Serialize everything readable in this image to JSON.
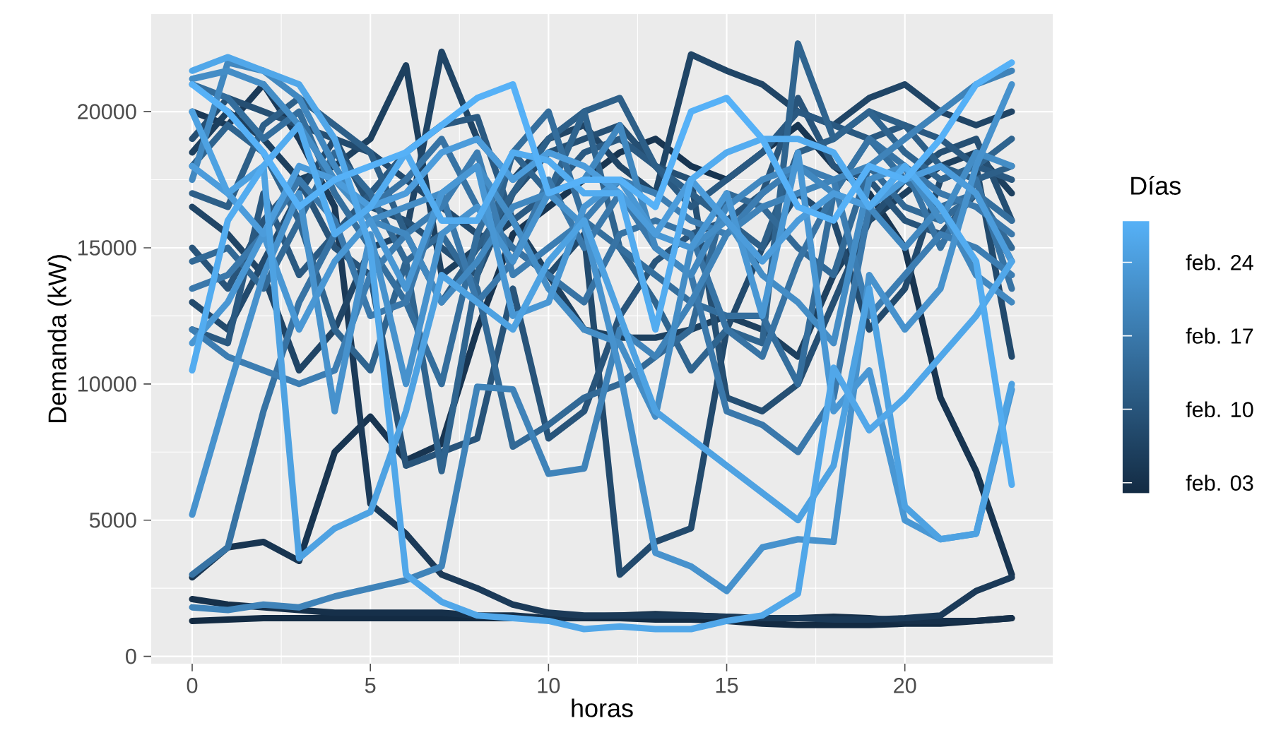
{
  "chart_data": {
    "type": "line",
    "xlabel": "horas",
    "ylabel": "Demanda (kW)",
    "clabel": "Días",
    "x": [
      0,
      1,
      2,
      3,
      4,
      5,
      6,
      7,
      8,
      9,
      10,
      11,
      12,
      13,
      14,
      15,
      16,
      17,
      18,
      19,
      20,
      21,
      22,
      23
    ],
    "xlim": [
      -1.15,
      24.15
    ],
    "xticks": [
      0,
      5,
      10,
      15,
      20
    ],
    "ylim": [
      -270,
      23580
    ],
    "yticks": [
      0,
      5000,
      10000,
      15000,
      20000
    ],
    "clim": [
      2,
      28
    ],
    "cticks": [
      {
        "value": 3,
        "label": "feb. 03"
      },
      {
        "value": 10,
        "label": "feb. 10"
      },
      {
        "value": 17,
        "label": "feb. 17"
      },
      {
        "value": 24,
        "label": "feb. 24"
      }
    ],
    "grid": true,
    "marker": "none",
    "line_style": "solid",
    "series": [
      {
        "color": "#132B43",
        "values": [
          1300,
          1350,
          1400,
          1400,
          1400,
          1400,
          1400,
          1400,
          1400,
          1400,
          1400,
          1400,
          1400,
          1350,
          1350,
          1300,
          1200,
          1150,
          1150,
          1150,
          1200,
          1200,
          1300,
          1400
        ]
      },
      {
        "color": "#16304A",
        "values": [
          2100,
          1900,
          1800,
          1700,
          1600,
          1600,
          1600,
          1600,
          1500,
          1500,
          1400,
          1450,
          1500,
          1550,
          1500,
          1450,
          1400,
          1400,
          1450,
          1400,
          1300,
          1300,
          1300,
          1400
        ]
      },
      {
        "color": "#183551",
        "values": [
          2900,
          4000,
          4200,
          3500,
          7500,
          8800,
          7200,
          7800,
          12000,
          15500,
          16500,
          17500,
          18500,
          19000,
          18000,
          17500,
          18500,
          19500,
          18000,
          17000,
          15000,
          9500,
          6800,
          3000
        ]
      },
      {
        "color": "#1B3A58",
        "values": [
          20000,
          19500,
          21000,
          19000,
          16500,
          5600,
          4500,
          3000,
          2500,
          1900,
          1600,
          1500,
          1500,
          1500,
          1500,
          1450,
          1400,
          1400,
          1350,
          1350,
          1400,
          1500,
          2400,
          2900
        ]
      },
      {
        "color": "#1D405F",
        "values": [
          18500,
          20000,
          19000,
          17500,
          18000,
          19000,
          21700,
          14000,
          15000,
          16000,
          14000,
          12000,
          11700,
          11700,
          12000,
          12500,
          12000,
          11000,
          14000,
          16000,
          17000,
          18000,
          18500,
          17000
        ]
      },
      {
        "color": "#204566",
        "values": [
          16500,
          15500,
          14000,
          10500,
          12000,
          15000,
          15500,
          22200,
          19000,
          17500,
          19000,
          19500,
          18000,
          17000,
          22100,
          21500,
          21000,
          20000,
          19500,
          20500,
          21000,
          20000,
          19500,
          20000
        ]
      },
      {
        "color": "#224A6D",
        "values": [
          13000,
          12000,
          14500,
          17000,
          19000,
          18500,
          17500,
          16500,
          15500,
          15000,
          14000,
          15500,
          3000,
          4200,
          4700,
          12000,
          15000,
          17000,
          16000,
          12000,
          13500,
          17500,
          18000,
          11000
        ]
      },
      {
        "color": "#254F73",
        "values": [
          19000,
          20500,
          20000,
          19500,
          19000,
          16500,
          16000,
          15000,
          14000,
          17000,
          18500,
          19000,
          19500,
          18000,
          17500,
          9500,
          9000,
          10000,
          13000,
          16000,
          17500,
          18500,
          19000,
          16000
        ]
      },
      {
        "color": "#28547A",
        "values": [
          15000,
          13500,
          16000,
          17500,
          15000,
          14000,
          7000,
          7500,
          8000,
          13500,
          8000,
          9000,
          12500,
          14500,
          15500,
          16000,
          17000,
          20500,
          18000,
          17500,
          16000,
          15500,
          17000,
          14500
        ]
      },
      {
        "color": "#2A5981",
        "values": [
          12000,
          11500,
          17000,
          14000,
          15500,
          17000,
          18500,
          19500,
          19800,
          16000,
          17000,
          18500,
          19000,
          18000,
          16500,
          17500,
          18500,
          20000,
          19500,
          19000,
          19500,
          19000,
          18000,
          17500
        ]
      },
      {
        "color": "#2D5F88",
        "values": [
          17000,
          16500,
          19500,
          20500,
          19500,
          18500,
          15500,
          13000,
          15000,
          17000,
          19000,
          20000,
          20500,
          18000,
          17000,
          16000,
          15000,
          18500,
          19000,
          20000,
          19500,
          18000,
          17500,
          18000
        ]
      },
      {
        "color": "#2F648F",
        "values": [
          18000,
          19500,
          18500,
          16000,
          12000,
          10500,
          14500,
          6800,
          14000,
          18500,
          17000,
          20000,
          15000,
          13000,
          10500,
          12000,
          11500,
          22500,
          19000,
          20000,
          18500,
          17500,
          18000,
          19000
        ]
      },
      {
        "color": "#326996",
        "values": [
          14500,
          15000,
          13500,
          16000,
          18500,
          17000,
          14500,
          15500,
          13500,
          7700,
          8500,
          9500,
          10000,
          11000,
          12000,
          17000,
          16500,
          15000,
          14000,
          18000,
          16500,
          16000,
          17000,
          15000
        ]
      },
      {
        "color": "#346E9D",
        "values": [
          21000,
          20500,
          19000,
          20000,
          17000,
          15000,
          13000,
          10000,
          15500,
          18500,
          20000,
          16000,
          15000,
          14000,
          13000,
          12500,
          12500,
          10000,
          17000,
          19000,
          17500,
          16500,
          17000,
          16000
        ]
      },
      {
        "color": "#3773A4",
        "values": [
          3000,
          4000,
          9000,
          13000,
          15500,
          16500,
          17500,
          19000,
          16500,
          15000,
          14000,
          13000,
          15500,
          16000,
          15500,
          12000,
          11000,
          14500,
          17000,
          19000,
          18000,
          15000,
          17500,
          13500
        ]
      },
      {
        "color": "#3A78AB",
        "values": [
          13500,
          14000,
          15500,
          17500,
          16000,
          12500,
          13000,
          17000,
          13000,
          14500,
          17500,
          15000,
          17000,
          15000,
          14000,
          9000,
          8500,
          7500,
          9500,
          16500,
          18000,
          17000,
          16500,
          15500
        ]
      },
      {
        "color": "#3C7DB2",
        "values": [
          12000,
          11000,
          10500,
          10000,
          10500,
          14000,
          15500,
          16500,
          18500,
          14000,
          15000,
          16000,
          17500,
          17000,
          16000,
          15500,
          17000,
          18000,
          17500,
          12500,
          14000,
          15500,
          15000,
          14000
        ]
      },
      {
        "color": "#3F83B9",
        "values": [
          1800,
          1700,
          1900,
          1800,
          2200,
          2500,
          2800,
          3300,
          9900,
          9800,
          6700,
          6900,
          12000,
          11000,
          13000,
          15500,
          16500,
          17000,
          17500,
          18000,
          19000,
          20000,
          21000,
          21500
        ]
      },
      {
        "color": "#4188C0",
        "values": [
          17500,
          21800,
          21500,
          20500,
          18000,
          16000,
          15500,
          13000,
          14500,
          16500,
          17000,
          17500,
          19500,
          15000,
          14000,
          16500,
          17500,
          18000,
          17000,
          16500,
          15000,
          16500,
          14000,
          13000
        ]
      },
      {
        "color": "#448DC6",
        "values": [
          21200,
          21500,
          21000,
          19500,
          17500,
          16000,
          16500,
          17000,
          18000,
          16000,
          13500,
          12000,
          11500,
          8800,
          15000,
          16000,
          14000,
          13000,
          11500,
          17500,
          18000,
          16000,
          18500,
          18000
        ]
      },
      {
        "color": "#4792CD",
        "values": [
          5200,
          9700,
          14000,
          17000,
          9000,
          15500,
          10000,
          15500,
          16500,
          14500,
          17000,
          15800,
          10500,
          3800,
          3300,
          2400,
          4000,
          4300,
          4200,
          14000,
          12000,
          13500,
          18000,
          21000
        ]
      },
      {
        "color": "#4997D4",
        "values": [
          11500,
          13000,
          15500,
          12000,
          14500,
          16000,
          13500,
          17000,
          18000,
          12500,
          13000,
          16500,
          17500,
          15500,
          15000,
          17000,
          12500,
          18500,
          9000,
          10500,
          5000,
          4300,
          4500,
          9800
        ]
      },
      {
        "color": "#4C9CDB",
        "values": [
          18000,
          17000,
          15500,
          18000,
          17500,
          16500,
          17000,
          18500,
          19000,
          17500,
          18500,
          18000,
          17000,
          15500,
          17500,
          16000,
          14500,
          16000,
          17000,
          16500,
          17500,
          18000,
          17000,
          14500
        ]
      },
      {
        "color": "#4EA2E2",
        "values": [
          20000,
          17000,
          18000,
          3600,
          4700,
          5300,
          9000,
          14000,
          13000,
          12000,
          14500,
          16000,
          12500,
          9000,
          8000,
          7000,
          6000,
          5000,
          7000,
          13500,
          5500,
          4300,
          4500,
          10000
        ]
      },
      {
        "color": "#51A7E9",
        "values": [
          21500,
          22000,
          21500,
          21000,
          19000,
          15000,
          3000,
          2000,
          1500,
          1400,
          1300,
          1000,
          1100,
          1000,
          1000,
          1300,
          1500,
          2300,
          10600,
          8300,
          9500,
          11000,
          12500,
          14500
        ]
      },
      {
        "color": "#53ACF0",
        "values": [
          10500,
          16000,
          18000,
          19500,
          15500,
          16500,
          18500,
          16000,
          16000,
          18500,
          18200,
          17000,
          17000,
          12000,
          17500,
          18500,
          19000,
          19000,
          18500,
          16500,
          18000,
          16500,
          14500,
          6300
        ]
      },
      {
        "color": "#56B1F7",
        "values": [
          21000,
          20000,
          18500,
          16500,
          17500,
          18000,
          18500,
          19500,
          20500,
          21000,
          17000,
          17500,
          17500,
          16500,
          20000,
          20500,
          19000,
          16500,
          16000,
          18000,
          17500,
          19000,
          21000,
          21800
        ]
      }
    ]
  }
}
